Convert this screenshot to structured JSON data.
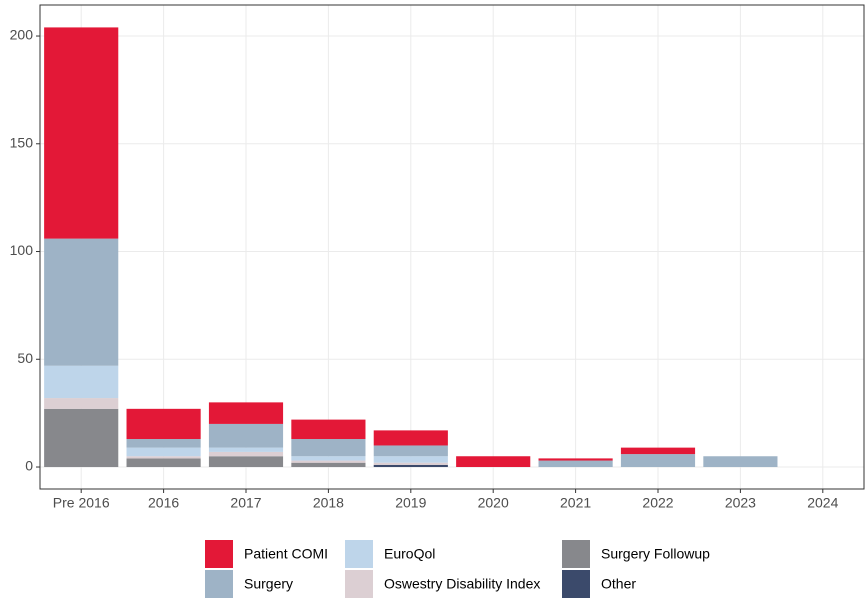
{
  "chart_data": {
    "type": "stacked_bar",
    "categories": [
      "Pre 2016",
      "2016",
      "2017",
      "2018",
      "2019",
      "2020",
      "2021",
      "2022",
      "2023",
      "2024"
    ],
    "series": [
      {
        "name": "Patient COMI",
        "color": "#e31837",
        "values": [
          98,
          14,
          10,
          9,
          7,
          5,
          1,
          3,
          0,
          0
        ]
      },
      {
        "name": "Surgery",
        "color": "#9eb3c6",
        "values": [
          59,
          4,
          11,
          8,
          5,
          0,
          3,
          6,
          5,
          0
        ]
      },
      {
        "name": "EuroQol",
        "color": "#bed5ea",
        "values": [
          15,
          4,
          2,
          2,
          3,
          0,
          0,
          0,
          0,
          0
        ]
      },
      {
        "name": "Oswestry Disability Index",
        "color": "#dccfd3",
        "values": [
          5,
          1,
          2,
          1,
          1,
          0,
          0,
          0,
          0,
          0
        ]
      },
      {
        "name": "Surgery Followup",
        "color": "#87888c",
        "values": [
          27,
          4,
          5,
          2,
          0,
          0,
          0,
          0,
          0,
          0
        ]
      },
      {
        "name": "Other",
        "color": "#3b4a6b",
        "values": [
          0,
          0,
          0,
          0,
          1,
          0,
          0,
          0,
          0,
          0
        ]
      }
    ],
    "ylim": [
      -10.2,
      214.4
    ],
    "yticks": [
      0,
      50,
      100,
      150,
      200
    ],
    "grid": true
  }
}
